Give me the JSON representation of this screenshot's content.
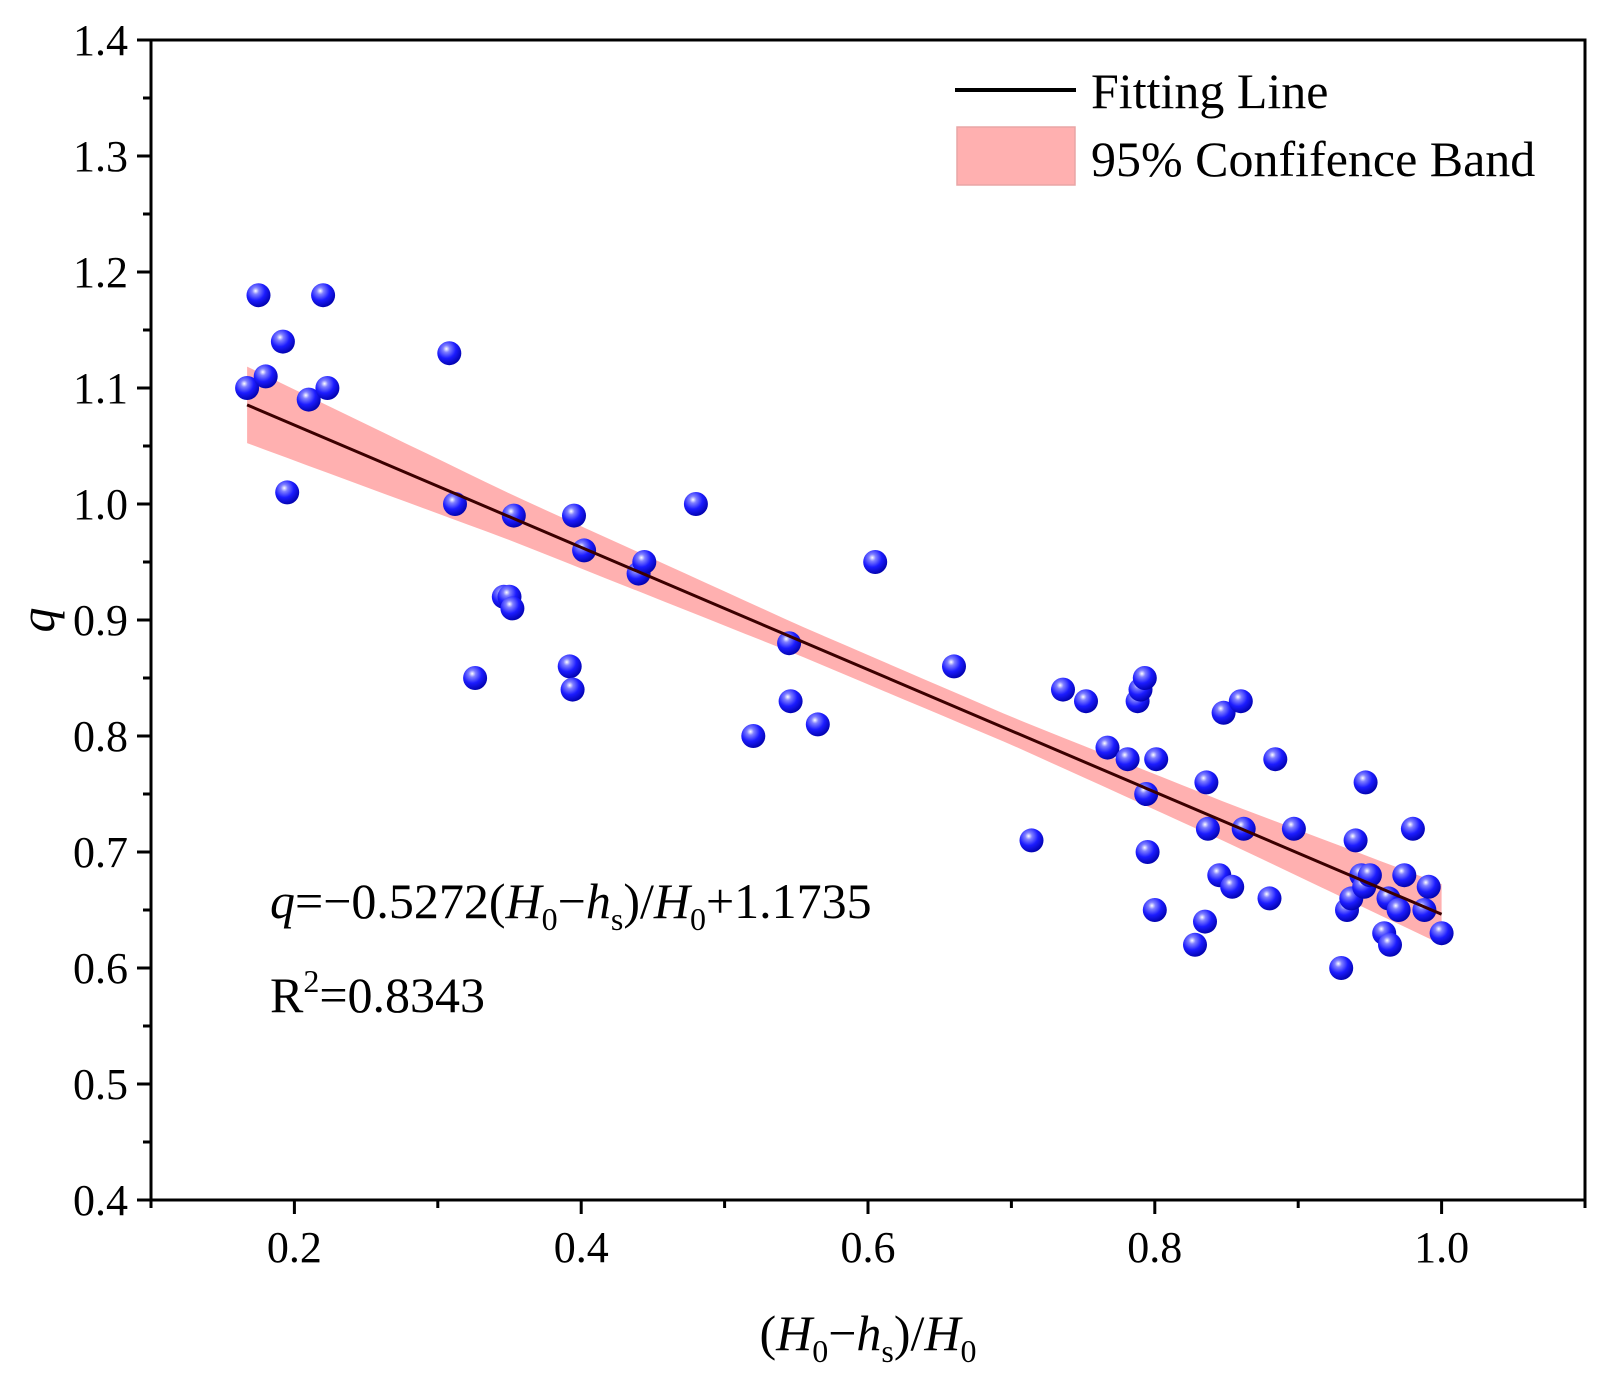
{
  "chart_data": {
    "type": "scatter",
    "title": "",
    "xlabel": "(H0−hs)/H0",
    "ylabel": "q",
    "xlim": [
      0.1,
      1.1
    ],
    "ylim": [
      0.4,
      1.4
    ],
    "x_ticks": [
      0.2,
      0.4,
      0.6,
      0.8,
      1.0
    ],
    "x_tick_labels": [
      "0.2",
      "0.4",
      "0.6",
      "0.8",
      "1.0"
    ],
    "y_ticks": [
      0.4,
      0.5,
      0.6,
      0.7,
      0.8,
      0.9,
      1.0,
      1.1,
      1.2,
      1.3,
      1.4
    ],
    "y_tick_labels": [
      "0.4",
      "0.5",
      "0.6",
      "0.7",
      "0.8",
      "0.9",
      "1.0",
      "1.1",
      "1.2",
      "1.3",
      "1.4"
    ],
    "grid": false,
    "legend_position": "top-right",
    "legend": [
      "Fitting Line",
      "95% Confifence Band"
    ],
    "fit": {
      "slope": -0.5272,
      "intercept": 1.1735,
      "x_range": [
        0.167,
        1.0
      ]
    },
    "band_halfwidth": [
      {
        "x": 0.167,
        "hw": 0.033
      },
      {
        "x": 0.35,
        "hw": 0.02
      },
      {
        "x": 0.55,
        "hw": 0.013
      },
      {
        "x": 0.7,
        "hw": 0.012
      },
      {
        "x": 0.85,
        "hw": 0.017
      },
      {
        "x": 1.0,
        "hw": 0.026
      }
    ],
    "annotation": {
      "equation_parts": [
        "q",
        "=−0.5272(",
        "H",
        "0",
        "−",
        "h",
        "s",
        ")/",
        "H",
        "0",
        "+1.1735"
      ],
      "r2_parts": [
        "R",
        "2",
        "=0.8343"
      ]
    },
    "points": [
      {
        "x": 0.167,
        "y": 1.1
      },
      {
        "x": 0.175,
        "y": 1.18
      },
      {
        "x": 0.18,
        "y": 1.11
      },
      {
        "x": 0.192,
        "y": 1.14
      },
      {
        "x": 0.195,
        "y": 1.01
      },
      {
        "x": 0.21,
        "y": 1.09
      },
      {
        "x": 0.22,
        "y": 1.18
      },
      {
        "x": 0.223,
        "y": 1.1
      },
      {
        "x": 0.308,
        "y": 1.13
      },
      {
        "x": 0.312,
        "y": 1.0
      },
      {
        "x": 0.326,
        "y": 0.85
      },
      {
        "x": 0.346,
        "y": 0.92
      },
      {
        "x": 0.35,
        "y": 0.92
      },
      {
        "x": 0.352,
        "y": 0.91
      },
      {
        "x": 0.353,
        "y": 0.99
      },
      {
        "x": 0.392,
        "y": 0.86
      },
      {
        "x": 0.394,
        "y": 0.84
      },
      {
        "x": 0.395,
        "y": 0.99
      },
      {
        "x": 0.402,
        "y": 0.96
      },
      {
        "x": 0.44,
        "y": 0.94
      },
      {
        "x": 0.444,
        "y": 0.95
      },
      {
        "x": 0.48,
        "y": 1.0
      },
      {
        "x": 0.52,
        "y": 0.8
      },
      {
        "x": 0.545,
        "y": 0.88
      },
      {
        "x": 0.546,
        "y": 0.83
      },
      {
        "x": 0.565,
        "y": 0.81
      },
      {
        "x": 0.605,
        "y": 0.95
      },
      {
        "x": 0.66,
        "y": 0.86
      },
      {
        "x": 0.714,
        "y": 0.71
      },
      {
        "x": 0.736,
        "y": 0.84
      },
      {
        "x": 0.752,
        "y": 0.83
      },
      {
        "x": 0.767,
        "y": 0.79
      },
      {
        "x": 0.781,
        "y": 0.78
      },
      {
        "x": 0.788,
        "y": 0.83
      },
      {
        "x": 0.79,
        "y": 0.84
      },
      {
        "x": 0.793,
        "y": 0.85
      },
      {
        "x": 0.794,
        "y": 0.75
      },
      {
        "x": 0.795,
        "y": 0.7
      },
      {
        "x": 0.8,
        "y": 0.65
      },
      {
        "x": 0.801,
        "y": 0.78
      },
      {
        "x": 0.828,
        "y": 0.62
      },
      {
        "x": 0.835,
        "y": 0.64
      },
      {
        "x": 0.836,
        "y": 0.76
      },
      {
        "x": 0.837,
        "y": 0.72
      },
      {
        "x": 0.845,
        "y": 0.68
      },
      {
        "x": 0.848,
        "y": 0.82
      },
      {
        "x": 0.854,
        "y": 0.67
      },
      {
        "x": 0.86,
        "y": 0.83
      },
      {
        "x": 0.862,
        "y": 0.72
      },
      {
        "x": 0.88,
        "y": 0.66
      },
      {
        "x": 0.884,
        "y": 0.78
      },
      {
        "x": 0.897,
        "y": 0.72
      },
      {
        "x": 0.93,
        "y": 0.6
      },
      {
        "x": 0.934,
        "y": 0.65
      },
      {
        "x": 0.937,
        "y": 0.66
      },
      {
        "x": 0.94,
        "y": 0.71
      },
      {
        "x": 0.944,
        "y": 0.68
      },
      {
        "x": 0.946,
        "y": 0.67
      },
      {
        "x": 0.947,
        "y": 0.76
      },
      {
        "x": 0.95,
        "y": 0.68
      },
      {
        "x": 0.96,
        "y": 0.63
      },
      {
        "x": 0.963,
        "y": 0.66
      },
      {
        "x": 0.964,
        "y": 0.62
      },
      {
        "x": 0.97,
        "y": 0.65
      },
      {
        "x": 0.974,
        "y": 0.68
      },
      {
        "x": 0.98,
        "y": 0.72
      },
      {
        "x": 0.988,
        "y": 0.65
      },
      {
        "x": 0.991,
        "y": 0.67
      },
      {
        "x": 1.0,
        "y": 0.63
      }
    ]
  },
  "colors": {
    "axis": "#000000",
    "band": "#ffb0b0",
    "band_stroke": "#e8a6a6",
    "fit_line": "#3b0000",
    "point_dark": "#0000a8",
    "point_mid": "#1c1cff",
    "point_light": "#d8d8ff"
  }
}
